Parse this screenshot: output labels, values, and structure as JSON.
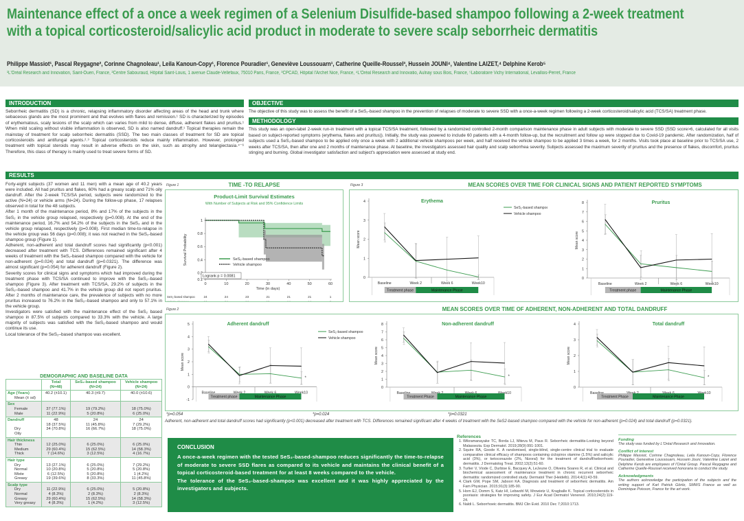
{
  "header": {
    "title_line1": "Maintenance effect of a once a week regimen of a Selenium Disulfide-based shampoo following a 2-week treatment",
    "title_line2": "with a topical corticosteroid/salicylic acid product in moderate to severe scalp seborrheic dermatitis",
    "authors": "Philippe Massiot¹, Pascal Reygagne², Corinne Chagnoleau¹, Leila Kanoun-Copy¹, Florence Pouradier¹, Geneviève Loussouarn¹, Catherine Queille-Roussel³, Hussein JOUNI⁴, Valentine LAIZET,⁴ Delphine Kerob⁵",
    "affiliations": "¹L'Oréal Research and Innovation, Saint-Ouen, France, ²Centre Sabouraud, Hôpital Saint-Louis, 1 avenue Claude-Vellefaux, 75010 Paris, France, ³CPCAD, Hôpital l'Archet Nice, France, ⁴L'Oréal Research and Innovatio, Aulnay sous Bois, France, ⁵Laboratoire Vichy International, Levallois-Perret, France"
  },
  "colors": {
    "brand_green": "#1f8c47",
    "title_green": "#3a9b4e",
    "header_bg": "#e4ebe4"
  },
  "introduction": {
    "heading": "INTRODUCTION",
    "text": "Seborrheic dermatitis (SD) is a chronic, relapsing inflammatory disorder affecting areas of the head and trunk where sebaceous glands are the most prominent and that evolves with flares and remission.¹ SD is characterized by episodes of erythematous, scaly lesions of the scalp which can varies from mild to dense, diffuse, adherent flakes and pruritus.¹ When mild scaling without visible inflammation is observed, SD is also named dandruff.¹ Topical therapies remain the mainstay of treatment for scalp seborrheic dermatitis (SSD). The two main classes of treatment for SD are topical corticosteroids and antifungal agents.²˒³ Topical corticosteroids reduce mainly inflammation. However, prolonged treatment with topical steroids may result in adverse effects on the skin, such as atrophy and telangiectasia.⁴⁻⁶ Therefore, this class of therapy is mainly used to treat severe forms of SD."
  },
  "objective": {
    "heading": "OBJECTIVE",
    "text": "The objective of this study was to assess the benefit of a SeS₂-based shampoo in the prevention of relapses of moderate to severe SSD with a once-a-week regimen following a 2-week corticosteroid/salicylic acid (TCS/SA) treatment phase."
  },
  "methodology": {
    "heading": "METHODOLOGY",
    "text": "This study was an open-label 2-week run-in treatment with a topical TCS/SA treatment, followed by a randomized controlled 2-month comparison maintenance phase in adult subjects with moderate to severe SSD (SSD score>6, calculated for all visits based on subject-reported symptoms (erythema, flakes and pruritus)). Initially, the study was powered to include 60 patients with a 4-month follow-up, but the recruitment and follow up were stopped due to Covid-19 pandemic. After randomization, half of subjects used a SeS₂-based shampoo to be applied only once a week with 2 additional vehicle shampoos per week, and half received the vehicle shampoo to be applied 3 times a week, for 2 months. Visits took place at baseline prior to TCS/SA use, 2 weeks after TCS/SA, then after one and 2 months of maintenance phase. At baseline, the investigators assessed hair quality and scalp seborrhea severity. Subjects assessed the maximum severity of pruritus and the presence of flakes, discomfort, pruritus stinging and burning. Global investigator satisfaction and subject's appreciation were assessed at study end."
  },
  "results": {
    "heading": "RESULTS",
    "paragraphs": [
      "Forty-eight subjects (37 women and 11 men) with a mean age of 40.2 years were included. All had pruritus and flakes, 60% had a greasy scalp and 71% oily dandruff. After the 2-week TCS/SA period, subjects were randomized to the active (N=24) or vehicle arms (N=24). During the follow-up phase, 17 relapses observed in total for the 48 subjects.",
      "After 1 month of the maintenance period, 8% and 17% of the subjects in the SeS₂ in the vehicle group relapsed, respectively (p=0.008). At the end of the maintenance period, 16.7% and 54.2% of the subjects in the SeS₂ and  in the vehicle group relapsed, respectively (p=0.008). First median time-to-relapse in the vehicle group was 56 days (p=0.008); it was not reached in the SeS₂-based shampoo group (Figure 1).",
      "Adherent, non-adherent and total dandruff scores had significantly (p<0.001) decreased after treatment with TCS. Differences remained significant after 4 weeks of treatment with the SeS₂-based shampoo compared with the vehicle for non-adherent (p=0.024) and total dandruff (p=0.0321). The difference was almost significant (p=0.054) for adherent dandruff (Figure 2).",
      "Severity scores for clinical signs and symptoms which had improved during the treatment phase with TCS/SA continued to improve with the SeS₂–based shampoo (Figure 3). After treatment with TCS/SA, 29.2% of subjects in the SeS₂–based shampoo and 41.7% in the vehicle group did not report pruritus. After 2 months of maintenance care, the prevalence of subjects with no more pruritus increased to 76.2% in the SeS₂–based shampoo and only to 57.1% in the vehicle group.",
      "Investigators were satisfied with the maintenance effect of the SeS₂ based shampoo in 87.5% of subjects compared to 33.3% with the vehicle. A large majority of subjects was satisfied with the SeS₂-based shampoo and would continue its use.",
      "Local tolerance of the SeS₂–based shampoo was excellent."
    ]
  },
  "demographics": {
    "title": "DEMOGRAPHIC AND BASELINE DATA",
    "columns": [
      "",
      "Total\n(N=48)",
      "SeS₂-based shampoo\n(N=24)",
      "Vehicle shampoo\n(N=24)"
    ],
    "groups": [
      {
        "name": "Age (Years)",
        "rows": [
          [
            "Mean (± sd)",
            "40.2 (±10.1)",
            "40.3 (±9.7)",
            "40.0 (±10.6)"
          ]
        ]
      },
      {
        "name": "Sex",
        "rows": [
          [
            "Female",
            "37 (77.1%)",
            "19 (79.2%)",
            "18 (75.0%)"
          ],
          [
            "Male",
            "11 (22.9%)",
            "5 (20.8%)",
            "6 (25.0%)"
          ]
        ]
      },
      {
        "name": "Dandruff",
        "rows": [
          [
            "",
            "48",
            "24",
            "24"
          ],
          [
            "Dry",
            "18 (37.5%)",
            "11 (45.8%)",
            "7 (29.2%)"
          ],
          [
            "Oily",
            "34 (70.8%)",
            "16 (66.7%)",
            "18 (75.0%)"
          ]
        ]
      },
      {
        "name": "Hair thickness",
        "rows": [
          [
            "Thin",
            "12 (25.0%)",
            "6 (25.0%)",
            "6 (25.0%)"
          ],
          [
            "Medium",
            "29 (60.4%)",
            "15 (62.5%)",
            "14 (58.3%)"
          ],
          [
            "Thick",
            "7 (14.6%)",
            "3 (12.5%)",
            "4 (16.7%)"
          ]
        ]
      },
      {
        "name": "Hair type",
        "rows": [
          [
            "Dry",
            "13 (27.1%)",
            "6 (25.0%)",
            "7 (29.2%)"
          ],
          [
            "Normal",
            "10 (20.8%)",
            "5 (20.8%)",
            "5 (20.8%)"
          ],
          [
            "Mixte",
            "6 (12.5%)",
            "5 (20.8%)",
            "1 (4.2%)"
          ],
          [
            "Greasy",
            "19 (39.6%)",
            "8 (33.3%)",
            "11 (45.8%)"
          ]
        ]
      },
      {
        "name": "Scalp type",
        "rows": [
          [
            "Dry",
            "11 (22.9%)",
            "6 (25.0%)",
            "5 (20.8%)"
          ],
          [
            "Normal",
            "4 (8.3%)",
            "2 (8.3%)",
            "2 (8.3%)"
          ],
          [
            "Greasy",
            "29 (60.4%)",
            "15 (62.5%)",
            "14 (58.3%)"
          ],
          [
            "Very greasy",
            "4 (8.3%)",
            "1 (4.2%)",
            "3 (12.5%)"
          ]
        ]
      }
    ]
  },
  "figure1": {
    "label": "Figure 1",
    "heading": "TIME -TO RELAPSE"
  },
  "figure2": {
    "label": "Figure 2",
    "heading": "MEAN SCORES OVER TIME OF ADHERENT, NON-ADHERENT AND TOTAL DANDRUFF",
    "pvalues": [
      "*p=0.054",
      "*p=0.024",
      "*p=0.0321"
    ],
    "caption": "Adherent, non-adherent and total dandruff scores had significantly (p<0.001) decreased after treatment with TCS. Differences remained significant after 4 weeks of treatment with the SeS2-based shampoo compared with the vehicle for non-adherent (p=0.024) and total dandruff (p=0.0321)."
  },
  "figure3": {
    "label": "Figure 3",
    "heading": "MEAN SCORES OVER TIME FOR CLINICAL SIGNS AND PATIENT REPORTED SYMPTOMS"
  },
  "chart_data": [
    {
      "id": "km",
      "type": "line",
      "title": "Product-Limit Survival Estimates",
      "subtitle": "With Number of Subjects at Risk and 95% Confidence Limits",
      "xlabel": "Time (in days)",
      "ylabel": "Survival Probability",
      "xlim": [
        0,
        60
      ],
      "ylim": [
        0.1,
        1.0
      ],
      "xticks": [
        0,
        10,
        20,
        30,
        40,
        50,
        60
      ],
      "yticks": [
        0.1,
        0.2,
        0.4,
        0.6,
        0.8,
        1.0
      ],
      "annotation": "Logrank p = 0.0081",
      "series": [
        {
          "name": "SeS₂-based shampoo",
          "color": "#3a9b4e",
          "style": "solid",
          "steps": [
            [
              0,
              1.0
            ],
            [
              16,
              0.96
            ],
            [
              28.5,
              0.875
            ],
            [
              56,
              0.83
            ],
            [
              60,
              0.83
            ]
          ],
          "ci": [
            [
              16,
              0.74,
              1.0
            ],
            [
              28.5,
              0.74,
              0.96
            ],
            [
              56,
              0.61,
              0.93
            ],
            [
              60,
              0.61,
              0.93
            ]
          ],
          "ci_color": "#a8d5b2"
        },
        {
          "name": "Vehicle shampoo",
          "color": "#333333",
          "style": "dashed",
          "steps": [
            [
              0,
              1.0
            ],
            [
              28,
              0.71
            ],
            [
              29,
              0.58
            ],
            [
              56,
              0.46
            ],
            [
              57,
              0.46
            ]
          ],
          "ci": [
            [
              28,
              0.48,
              0.85
            ],
            [
              29,
              0.37,
              0.78
            ],
            [
              56,
              0.25,
              0.64
            ],
            [
              57,
              0.25,
              0.64
            ]
          ],
          "ci_color": "#9a9a9a"
        }
      ],
      "at_risk": {
        "times": [
          0,
          10,
          20,
          30,
          40,
          50,
          60
        ],
        "rows": [
          {
            "name": "SeS₂-based shampoo",
            "values": [
              "24",
              "24",
              "23",
              "21",
              "21",
              "21",
              "1"
            ]
          },
          {
            "name": "Vehicle shampoo",
            "values": [
              "24",
              "24",
              "24",
              "15",
              "14",
              "14",
              "0"
            ]
          }
        ]
      }
    },
    {
      "id": "erythema",
      "type": "line",
      "title": "Erythema",
      "ylabel": "Mean score",
      "ylim": [
        0,
        4
      ],
      "yticks": [
        0,
        1,
        2,
        3,
        4
      ],
      "categories": [
        "Baseline",
        "Week 2",
        "Week 6",
        "Week10"
      ],
      "legend": true,
      "series": [
        {
          "name": "SeS₂-based shampoo",
          "color": "#3a9b4e",
          "values": [
            2.35,
            0.85,
            0.38,
            0.02
          ],
          "err": [
            0.5,
            0.9,
            0.0,
            0.1
          ]
        },
        {
          "name": "Vehicle shampoo",
          "color": "#111111",
          "values": [
            2.65,
            0.88,
            0.95,
            1.02
          ],
          "err": [
            0.7,
            0.9,
            1.15,
            1.15
          ]
        }
      ],
      "phases": [
        "Treatment phase",
        "Maintenance Phase"
      ]
    },
    {
      "id": "pruritus",
      "type": "line",
      "title": "Pruritus",
      "ylabel": "Mean score",
      "ylim": [
        0,
        8
      ],
      "yticks": [
        0,
        1,
        2,
        3,
        4,
        5,
        6,
        7,
        8
      ],
      "categories": [
        "Baseline",
        "Week 2",
        "Week 6",
        "Week10"
      ],
      "series": [
        {
          "name": "SeS₂-based shampoo",
          "color": "#3a9b4e",
          "values": [
            5.7,
            1.5,
            1.1,
            0.7
          ],
          "err": [
            1.0,
            1.4,
            1.3,
            1.1
          ]
        },
        {
          "name": "Vehicle shampoo",
          "color": "#111111",
          "values": [
            6.2,
            1.1,
            1.9,
            2.0
          ],
          "err": [
            1.6,
            1.3,
            2.7,
            2.7
          ]
        }
      ],
      "phases": [
        "Treatment phase",
        "Maintenance Phase"
      ]
    },
    {
      "id": "adherent",
      "type": "line",
      "title": "Adherent dandruff",
      "ylabel": "Mean score",
      "ylim": [
        -1,
        5
      ],
      "yticks": [
        -1,
        0,
        1,
        2,
        3,
        4,
        5
      ],
      "categories": [
        "Baseline",
        "Week 2",
        "Week 6",
        "Week10"
      ],
      "legend": true,
      "star": "*",
      "series": [
        {
          "name": "SeS₂-based shampoo",
          "color": "#3a9b4e",
          "values": [
            3.2,
            1.0,
            1.05,
            0.7
          ],
          "err": [
            0.5,
            0.6,
            0.75,
            0.5
          ]
        },
        {
          "name": "Vehicle shampoo",
          "color": "#111111",
          "values": [
            3.4,
            0.9,
            1.7,
            1.65
          ],
          "err": [
            0.6,
            0.65,
            1.4,
            1.45
          ]
        }
      ],
      "phases": [
        "Treatment phase",
        "Maintenance Phase"
      ]
    },
    {
      "id": "nonadherent",
      "type": "line",
      "title": "Non-adherent dandruff",
      "ylabel": "Mean score",
      "ylim": [
        0,
        8
      ],
      "yticks": [
        0,
        1,
        2,
        3,
        4,
        5,
        6,
        7,
        8
      ],
      "categories": [
        "Baseline",
        "Week 2",
        "Week 6",
        "Week10"
      ],
      "star": "*",
      "series": [
        {
          "name": "SeS₂-based shampoo",
          "color": "#3a9b4e",
          "values": [
            6.2,
            1.9,
            2.15,
            1.3
          ],
          "err": [
            0.8,
            1.4,
            1.3,
            1.0
          ]
        },
        {
          "name": "Vehicle shampoo",
          "color": "#111111",
          "values": [
            6.6,
            1.85,
            3.25,
            3.05
          ],
          "err": [
            0.9,
            1.35,
            2.35,
            2.6
          ]
        }
      ],
      "phases": [
        "Treatment Phase",
        "Maintenance Phase"
      ]
    },
    {
      "id": "total",
      "type": "line",
      "title": "Total dandruff",
      "ylabel": "Mean score",
      "ylim": [
        0,
        4
      ],
      "yticks": [
        0,
        1,
        2,
        3,
        4
      ],
      "categories": [
        "Baseline",
        "Week 2",
        "Week 6",
        "Week10"
      ],
      "star": "*",
      "series": [
        {
          "name": "SeS₂-based shampoo",
          "color": "#3a9b4e",
          "values": [
            2.95,
            0.95,
            1.1,
            0.6
          ],
          "err": [
            0.4,
            0.8,
            0.7,
            0.45
          ]
        },
        {
          "name": "Vehicle shampoo",
          "color": "#111111",
          "values": [
            3.15,
            0.95,
            1.55,
            1.35
          ],
          "err": [
            0.5,
            0.8,
            1.05,
            1.2
          ]
        }
      ],
      "phases": [
        "Treatment Phase",
        "Maintenance Phase"
      ]
    }
  ],
  "conclusion": {
    "heading": "CONCLUSION",
    "paragraphs": [
      "A once-a-week regimen with the tested SeS₂-based-shampoo reduces significantly the time-to-relapse of moderate to severe SSD flares as compared to its vehicle and maintains the clinical benefit of a topical corticosteroid-based treatment for at least 8 weeks compared to the vehicle.",
      "The tolerance of the SeS₂-based-shampoo was excellent and it was highly appreciated by the investigators and subjects."
    ]
  },
  "references": {
    "heading": "References",
    "items": [
      "Wikramanayake TC, Borda LJ, Miteva M, Paus R. Seborrheic dermatitis-Looking beyond Malassezia. Exp Dermatol. 2019;28(9):991-1001.",
      "Squire RA, Goode K. A randomised, single-blind, single-centre clinical trial to evaluate comparative clinical efficacy of shampoos containing ciclopirox olamine (1.5%) and salicylic acid (3%), or ketoconazole (2%, Nizoral) for the treatment of dandruff/seborrhoeic dermatitis. J Dermatolog Treat. 2002;13(2):51-60.",
      "Turlier V, Viode C, Durbise E, Bacquey A, LeJeune O, Oliveira Soares R, et al. Clinical and biochemical assessment of maintenance treatment in chronic recurrent seborrheic dermatitis: randomized controlled study. Dermatol Ther (Heidelb). 2014;4(1):43-59.",
      "Clark GW, Pope SM, Jaboori KA. Diagnosis and treatment of seborrheic dermatitis. Am Fam Physician. 2015;91(3):185-90.",
      "Horn EJ, Domm S, Katz HI, Lebwohl M, Mrowietz U, Kragballe K. Topical corticosteroids in psoriasis: strategies for improving safety. J Eur Acad Dermatol Venereol. 2010;24(2):119-24.",
      "Naldi L. Seborrhoeic dermatitis. BMJ Clin Evid. 2010 Dec 7;2010:1713."
    ]
  },
  "funding": {
    "heading": "Funding",
    "text": "The study was funded by L'Oréal Research and Innovation."
  },
  "conflict": {
    "heading": "Conflict of interest",
    "text": "Philippe Massiot, Corinne Chagnoleau, Leila Kanoun-Copy, Florence Pouradier, Geneviève Loussouarn, Hussein Jouni, Valentine Laizet and Delphine Kerob are employees of l'Oréal Group. Pascal Reygagne and Catherine Queille-Roussel received honoraria to conduct the study."
  },
  "acknowledgments": {
    "heading": "Acknowledgments",
    "text": "The authors acknowledge the participation of the subjects and the writing support of Karl Patrick Göritz, SMWS France as well as Dominique Poisson, France for the art work."
  }
}
